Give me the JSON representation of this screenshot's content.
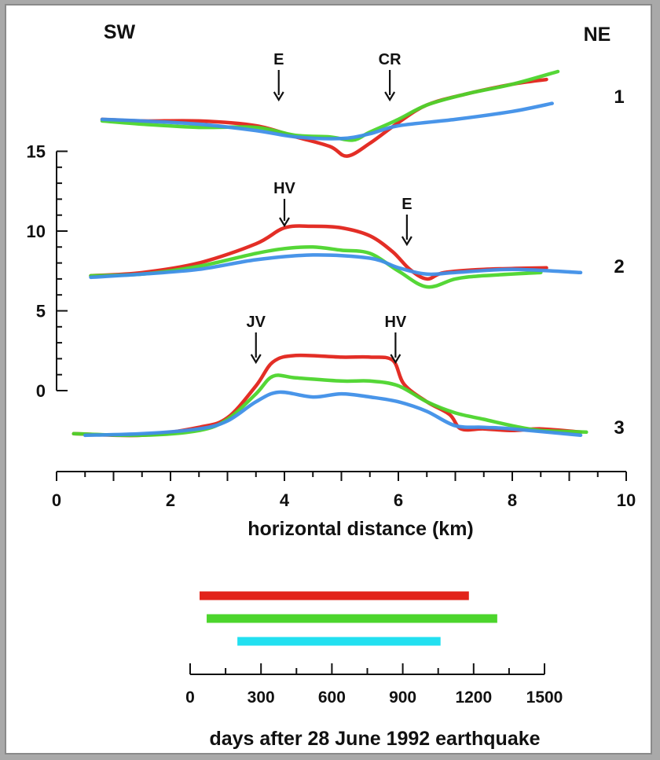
{
  "chart_data": [
    {
      "type": "line",
      "direction_labels": {
        "left": "SW",
        "right": "NE"
      },
      "xlabel": "horizontal distance (km)",
      "xlim": [
        0,
        10
      ],
      "x_ticks": [
        0,
        2,
        4,
        6,
        8,
        10
      ],
      "y_ticks": [
        0,
        5,
        10,
        15
      ],
      "profile_labels": [
        "1",
        "2",
        "3"
      ],
      "colors": {
        "red": "#e2231a",
        "green": "#4cd52c",
        "blue": "#3f8fe8"
      },
      "profiles": [
        {
          "label": "1",
          "markers": [
            {
              "text": "E",
              "x": 3.9
            },
            {
              "text": "CR",
              "x": 5.85
            }
          ],
          "series": [
            {
              "color": "red",
              "x": [
                0.8,
                1.5,
                2.5,
                3.5,
                4.2,
                4.8,
                5.1,
                5.5,
                6.0,
                6.5,
                7.2,
                8.0,
                8.6
              ],
              "y": [
                17.0,
                16.9,
                16.9,
                16.6,
                15.9,
                15.3,
                14.7,
                15.5,
                16.8,
                17.9,
                18.6,
                19.2,
                19.5
              ]
            },
            {
              "color": "green",
              "x": [
                0.8,
                1.5,
                2.5,
                3.5,
                4.2,
                4.8,
                5.2,
                5.5,
                6.0,
                6.5,
                7.2,
                8.0,
                8.8
              ],
              "y": [
                16.9,
                16.7,
                16.5,
                16.5,
                16.0,
                15.9,
                15.7,
                16.2,
                17.0,
                17.9,
                18.6,
                19.2,
                20.0
              ]
            },
            {
              "color": "blue",
              "x": [
                0.8,
                1.5,
                2.5,
                3.5,
                4.2,
                5.0,
                5.5,
                6.0,
                7.0,
                8.0,
                8.7
              ],
              "y": [
                17.0,
                16.9,
                16.7,
                16.3,
                15.9,
                15.8,
                16.1,
                16.6,
                17.0,
                17.5,
                18.0
              ]
            }
          ]
        },
        {
          "label": "2",
          "markers": [
            {
              "text": "HV",
              "x": 4.0
            },
            {
              "text": "E",
              "x": 6.15
            }
          ],
          "series": [
            {
              "color": "red",
              "x": [
                0.6,
                1.5,
                2.5,
                3.5,
                4.0,
                4.5,
                5.0,
                5.5,
                5.9,
                6.2,
                6.5,
                6.8,
                7.5,
                8.6
              ],
              "y": [
                7.2,
                7.4,
                8.0,
                9.2,
                10.2,
                10.3,
                10.2,
                9.7,
                8.7,
                7.6,
                7.0,
                7.4,
                7.6,
                7.7
              ]
            },
            {
              "color": "green",
              "x": [
                0.6,
                1.5,
                2.5,
                3.5,
                4.0,
                4.5,
                5.0,
                5.5,
                6.0,
                6.5,
                7.0,
                7.5,
                8.5
              ],
              "y": [
                7.2,
                7.3,
                7.8,
                8.6,
                8.9,
                9.0,
                8.8,
                8.6,
                7.5,
                6.5,
                7.0,
                7.2,
                7.4
              ]
            },
            {
              "color": "blue",
              "x": [
                0.6,
                1.5,
                2.5,
                3.5,
                4.5,
                5.5,
                6.0,
                6.5,
                7.0,
                8.0,
                9.2
              ],
              "y": [
                7.1,
                7.3,
                7.6,
                8.2,
                8.5,
                8.3,
                7.7,
                7.3,
                7.4,
                7.6,
                7.4
              ]
            }
          ]
        },
        {
          "label": "3",
          "markers": [
            {
              "text": "JV",
              "x": 3.5
            },
            {
              "text": "HV",
              "x": 5.95
            }
          ],
          "series": [
            {
              "color": "red",
              "x": [
                0.3,
                1.5,
                2.5,
                3.0,
                3.5,
                3.8,
                4.2,
                5.0,
                5.5,
                5.9,
                6.1,
                6.5,
                6.9,
                7.1,
                7.5,
                8.0,
                8.5,
                9.2
              ],
              "y": [
                -2.7,
                -2.8,
                -2.3,
                -1.7,
                0.3,
                1.8,
                2.2,
                2.1,
                2.1,
                1.9,
                0.4,
                -0.7,
                -1.5,
                -2.4,
                -2.4,
                -2.5,
                -2.4,
                -2.6
              ]
            },
            {
              "color": "green",
              "x": [
                0.3,
                1.5,
                2.5,
                3.0,
                3.5,
                3.8,
                4.2,
                5.0,
                5.5,
                6.0,
                6.5,
                7.0,
                7.5,
                8.0,
                8.5,
                9.3
              ],
              "y": [
                -2.7,
                -2.8,
                -2.5,
                -1.8,
                -0.2,
                0.9,
                0.8,
                0.6,
                0.6,
                0.3,
                -0.7,
                -1.4,
                -1.8,
                -2.2,
                -2.5,
                -2.6
              ]
            },
            {
              "color": "blue",
              "x": [
                0.5,
                1.5,
                2.5,
                3.0,
                3.5,
                3.9,
                4.5,
                5.0,
                5.5,
                6.0,
                6.5,
                7.0,
                7.5,
                8.0,
                9.2
              ],
              "y": [
                -2.8,
                -2.7,
                -2.4,
                -1.9,
                -0.7,
                -0.1,
                -0.4,
                -0.2,
                -0.4,
                -0.7,
                -1.3,
                -2.2,
                -2.3,
                -2.4,
                -2.8
              ]
            }
          ]
        }
      ]
    },
    {
      "type": "bar",
      "orientation": "horizontal",
      "xlabel": "days after 28 June 1992 earthquake",
      "xlim": [
        0,
        1500
      ],
      "x_ticks": [
        0,
        300,
        600,
        900,
        1200,
        1500
      ],
      "ranges": [
        {
          "color": "red",
          "start": 40,
          "end": 1180
        },
        {
          "color": "green",
          "start": 70,
          "end": 1300
        },
        {
          "color": "cyan",
          "start": 200,
          "end": 1060
        }
      ],
      "colors": {
        "red": "#e2231a",
        "green": "#4cd52c",
        "cyan": "#22e0f0"
      }
    }
  ]
}
